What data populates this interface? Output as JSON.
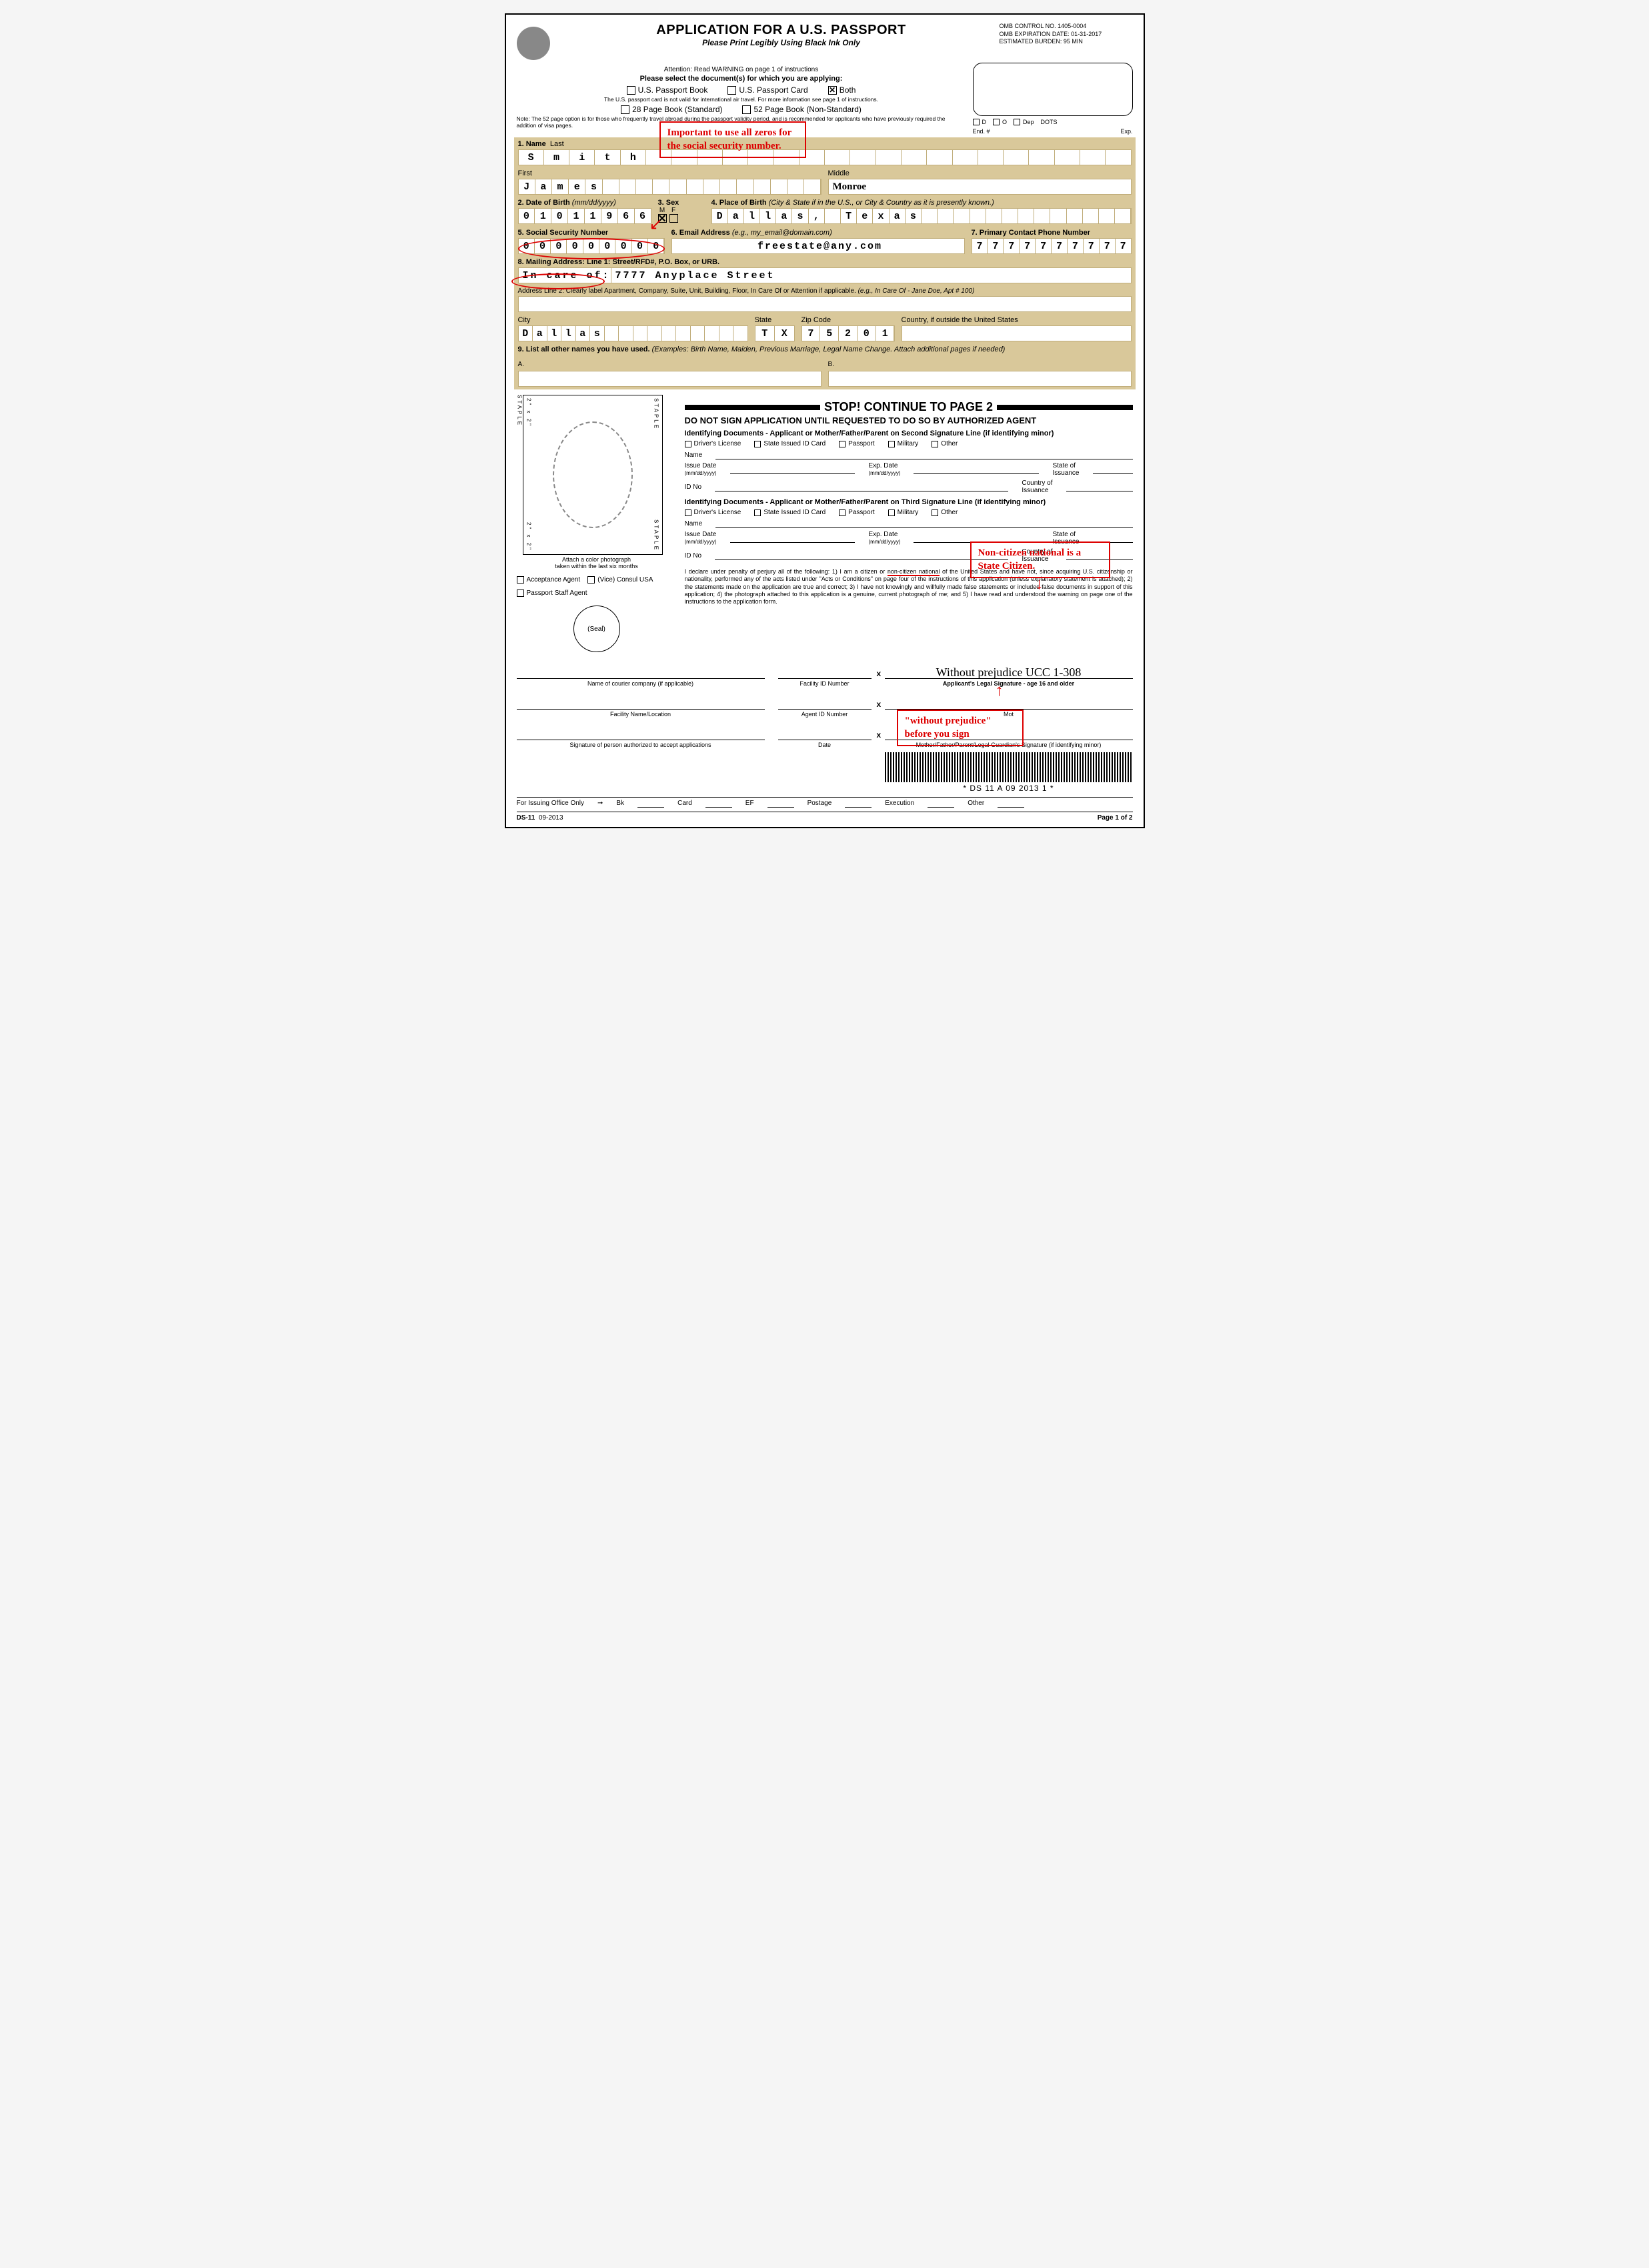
{
  "header": {
    "title": "APPLICATION FOR A U.S. PASSPORT",
    "subtitle": "Please Print Legibly Using Black Ink Only",
    "omb_control": "OMB CONTROL NO. 1405-0004",
    "omb_expiration": "OMB EXPIRATION DATE: 01-31-2017",
    "estimated_burden": "ESTIMATED BURDEN: 95 MIN"
  },
  "instructions": {
    "attention": "Attention: Read WARNING on page 1 of instructions",
    "select": "Please select the document(s) for which you are applying:",
    "opt_book": "U.S. Passport Book",
    "opt_card": "U.S. Passport Card",
    "opt_both": "Both",
    "both_checked": "✕",
    "card_note": "The U.S. passport card is not valid for international air travel. For more information see page 1 of instructions.",
    "opt_28": "28 Page Book (Standard)",
    "opt_52": "52 Page Book (Non-Standard)",
    "note52": "Note: The 52 page option is for those who frequently travel abroad during the passport validity period, and is recommended for applicants who have previously required the addition of visa pages."
  },
  "endorsement": {
    "d": "D",
    "o": "O",
    "dep": "Dep",
    "dots": "DOTS",
    "end": "End. #",
    "exp": "Exp."
  },
  "fields": {
    "f1_label": "1. Name",
    "last_label": "Last",
    "last_value": [
      "S",
      "m",
      "i",
      "t",
      "h"
    ],
    "first_label": "First",
    "first_value": [
      "J",
      "a",
      "m",
      "e",
      "s"
    ],
    "middle_label": "Middle",
    "middle_value": "Monroe",
    "f2_label": "2. Date of Birth",
    "f2_hint": "(mm/dd/yyyy)",
    "dob": [
      "0",
      "1",
      "0",
      "1",
      "1",
      "9",
      "6",
      "6"
    ],
    "f3_label": "3. Sex",
    "sex_m": "M",
    "sex_f": "F",
    "sex_mark": "✕",
    "f4_label": "4. Place of Birth",
    "f4_hint": "(City & State if in the U.S., or City & Country as it is presently known.)",
    "pob": [
      "D",
      "a",
      "l",
      "l",
      "a",
      "s",
      ",",
      "",
      "T",
      "e",
      "x",
      "a",
      "s"
    ],
    "f5_label": "5. Social Security Number",
    "ssn": [
      "0",
      "0",
      "0",
      "0",
      "0",
      "0",
      "0",
      "0",
      "0"
    ],
    "f6_label": "6. Email Address",
    "f6_hint": "(e.g., my_email@domain.com)",
    "email": "freestate@any.com",
    "f7_label": "7. Primary Contact Phone Number",
    "phone": [
      "7",
      "7",
      "7",
      "7",
      "7",
      "7",
      "7",
      "7",
      "7",
      "7"
    ],
    "f8_label": "8. Mailing Address: Line 1: Street/RFD#, P.O. Box, or URB.",
    "addr1_prefix": "In care of:",
    "addr1_value": "7777 Anyplace Street",
    "addr2_label": "Address Line 2: Clearly label Apartment, Company, Suite, Unit, Building, Floor, In Care Of or Attention if applicable.",
    "addr2_hint": "(e.g., In Care Of - Jane Doe, Apt # 100)",
    "city_label": "City",
    "city": [
      "D",
      "a",
      "l",
      "l",
      "a",
      "s"
    ],
    "state_label": "State",
    "state": [
      "T",
      "X"
    ],
    "zip_label": "Zip Code",
    "zip": [
      "7",
      "5",
      "2",
      "0",
      "1"
    ],
    "country_label": "Country, if outside the United States",
    "f9_label": "9. List all other names you have used.",
    "f9_hint": "(Examples: Birth Name, Maiden, Previous Marriage, Legal Name Change. Attach additional pages if needed)",
    "a_label": "A.",
    "b_label": "B."
  },
  "stop": {
    "title": "STOP! CONTINUE TO PAGE 2",
    "donot": "DO NOT SIGN APPLICATION UNTIL REQUESTED TO DO SO BY AUTHORIZED AGENT"
  },
  "photo": {
    "staple": "STAPLE",
    "size": "2\" x 2\"",
    "caption1": "Attach a color photograph",
    "caption2": "taken within the last six months",
    "from": "FROM 1\" TO",
    "to": "1 3/8\""
  },
  "id_docs": {
    "header2": "Identifying Documents - Applicant or Mother/Father/Parent on Second Signature Line (if identifying minor)",
    "header3": "Identifying Documents - Applicant or Mother/Father/Parent on Third Signature Line (if identifying minor)",
    "dl": "Driver's License",
    "sid": "State Issued ID Card",
    "pp": "Passport",
    "mil": "Military",
    "other": "Other",
    "name": "Name",
    "issue_date": "Issue Date",
    "issue_hint": "(mm/dd/yyyy)",
    "exp_date": "Exp. Date",
    "exp_hint": "(mm/dd/yyyy)",
    "state_of": "State of",
    "issuance": "Issuance",
    "idno": "ID No",
    "country_of": "Country of"
  },
  "agent": {
    "acceptance": "Acceptance Agent",
    "vice": "(Vice) Consul USA",
    "staff": "Passport Staff Agent",
    "seal": "(Seal)",
    "courier": "Name of courier company (if applicable)",
    "facility_id": "Facility ID Number",
    "facility_name": "Facility Name/Location",
    "agent_id": "Agent ID Number",
    "sig_auth": "Signature of person authorized to accept applications",
    "date": "Date"
  },
  "declaration": "I declare under penalty of perjury all of the following: 1) I am a citizen or non-citizen national of the United States and have not, since acquiring U.S. citizenship or nationality, performed any of the acts listed under \"Acts or Conditions\" on page four of the instructions of this application (unless explanatory statement is attached); 2) the statements made on the application are true and correct; 3) I have not knowingly and willfully made false statements or included false documents in support of this application; 4) the photograph attached to this application is a genuine, current photograph of me; and 5) I have read and understood the warning on page one of the instructions to the application form.",
  "signatures": {
    "ucc": "Without prejudice UCC 1-308",
    "applicant": "Applicant's Legal Signature - age 16 and older",
    "parent2": "Mother/Father/Parent/Legal Guardian's Signature (if identifying minor)",
    "parent3": "Mother/Father/Parent/Legal Guardian's Signature (if identifying minor)",
    "mot": "Mot",
    "or": "or"
  },
  "barcode": "* DS 11 A 09 2013 1 *",
  "issuing": {
    "label": "For Issuing Office Only",
    "bk": "Bk",
    "card": "Card",
    "ef": "EF",
    "postage": "Postage",
    "execution": "Execution",
    "other": "Other"
  },
  "footer": {
    "form": "DS-11",
    "rev": "09-2013",
    "page": "Page 1 of 2"
  },
  "annotations": {
    "ssn_note": "Important to use all zeros for the social security number.",
    "national_note": "Non-citizen national is a State Citizen.",
    "ucc_note": "\"without prejudice\" before you sign"
  },
  "colors": {
    "tan": "#d9c89a",
    "red": "#d00000",
    "black": "#000000",
    "white": "#ffffff"
  }
}
